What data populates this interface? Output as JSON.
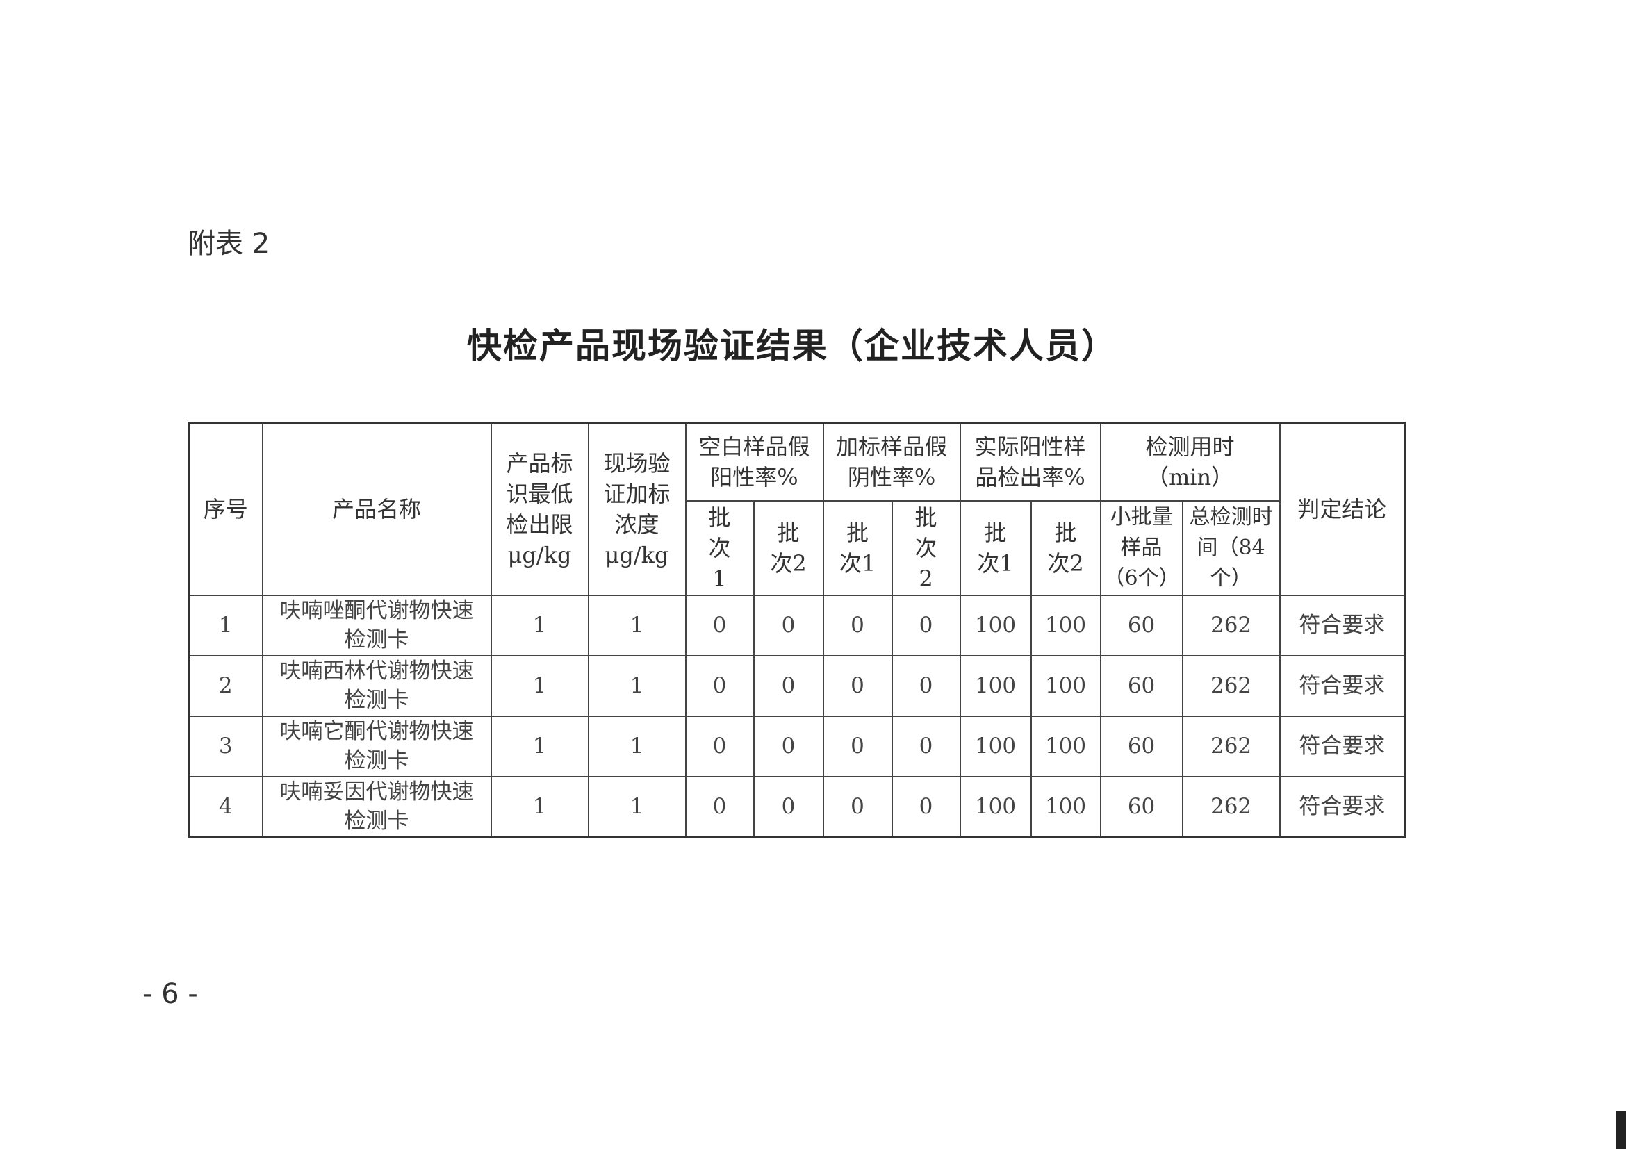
{
  "appendix_label": "附表 2",
  "title": "快检产品现场验证结果（企业技术人员）",
  "table": {
    "headers": {
      "index": "序号",
      "product_name": "产品名称",
      "lod": "产品标识最低检出限μg/kg",
      "spike_conc": "现场验证加标浓度μg/kg",
      "blank_false_positive": "空白样品假阳性率%",
      "spiked_false_negative": "加标样品假阴性率%",
      "positive_detection": "实际阳性样品检出率%",
      "time": "检测用时（min）",
      "conclusion": "判定结论",
      "batch1": "批次1",
      "batch2": "批次2",
      "small_batch": "小批量样品（6个）",
      "total_time": "总检测时间（84个）"
    },
    "rows": [
      {
        "index": "1",
        "name": "呋喃唑酮代谢物快速检测卡",
        "lod": "1",
        "spike": "1",
        "bfp1": "0",
        "bfp2": "0",
        "sfn1": "0",
        "sfn2": "0",
        "pd1": "100",
        "pd2": "100",
        "small": "60",
        "total": "262",
        "conclusion": "符合要求"
      },
      {
        "index": "2",
        "name": "呋喃西林代谢物快速检测卡",
        "lod": "1",
        "spike": "1",
        "bfp1": "0",
        "bfp2": "0",
        "sfn1": "0",
        "sfn2": "0",
        "pd1": "100",
        "pd2": "100",
        "small": "60",
        "total": "262",
        "conclusion": "符合要求"
      },
      {
        "index": "3",
        "name": "呋喃它酮代谢物快速检测卡",
        "lod": "1",
        "spike": "1",
        "bfp1": "0",
        "bfp2": "0",
        "sfn1": "0",
        "sfn2": "0",
        "pd1": "100",
        "pd2": "100",
        "small": "60",
        "total": "262",
        "conclusion": "符合要求"
      },
      {
        "index": "4",
        "name": "呋喃妥因代谢物快速检测卡",
        "lod": "1",
        "spike": "1",
        "bfp1": "0",
        "bfp2": "0",
        "sfn1": "0",
        "sfn2": "0",
        "pd1": "100",
        "pd2": "100",
        "small": "60",
        "total": "262",
        "conclusion": "符合要求"
      }
    ]
  },
  "page_number": "- 6 -"
}
